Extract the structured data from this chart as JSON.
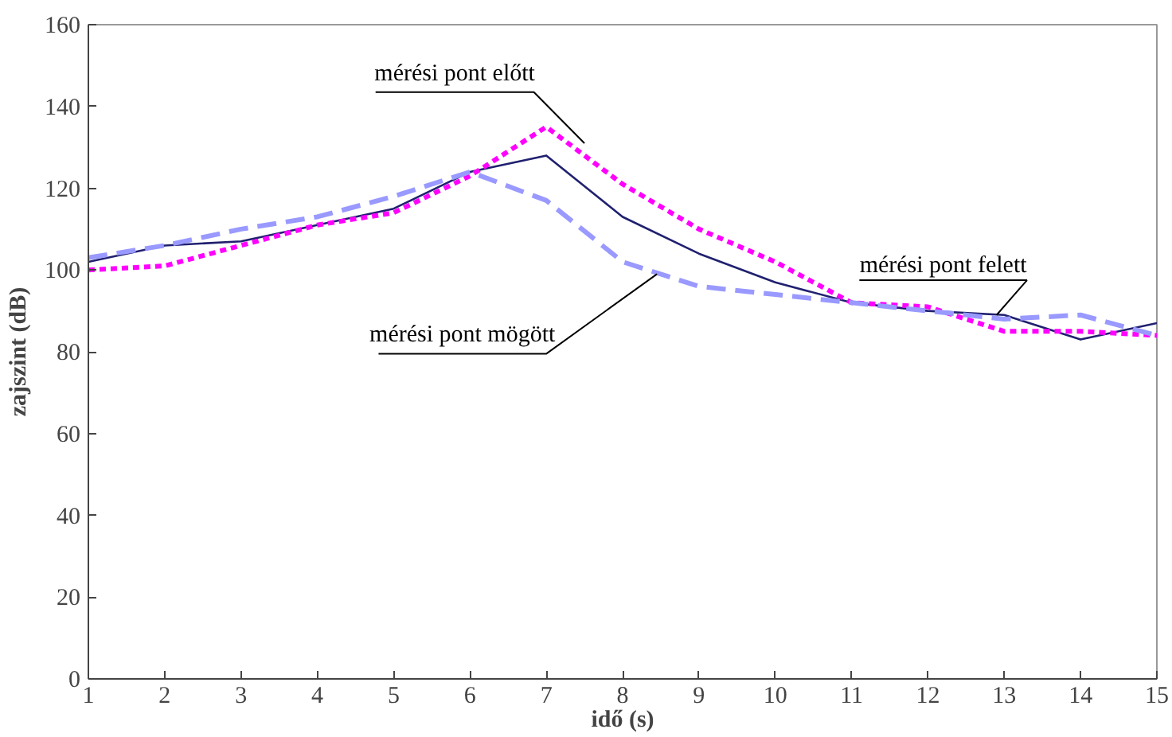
{
  "chart_data": {
    "type": "line",
    "xlabel": "idő (s)",
    "ylabel": "zajszint (dB)",
    "x": [
      1,
      2,
      3,
      4,
      5,
      6,
      7,
      8,
      9,
      10,
      11,
      12,
      13,
      14,
      15
    ],
    "xlim": [
      1,
      15
    ],
    "xticks": [
      1,
      2,
      3,
      4,
      5,
      6,
      7,
      8,
      9,
      10,
      11,
      12,
      13,
      14,
      15
    ],
    "ylim": [
      0,
      160
    ],
    "yticks": [
      0,
      20,
      40,
      60,
      80,
      100,
      120,
      140,
      160
    ],
    "grid": false,
    "series": [
      {
        "name": "mérési pont felett",
        "color": "#202070",
        "line_style": "solid",
        "values": [
          102,
          106,
          107,
          111,
          115,
          124,
          128,
          113,
          104,
          97,
          92,
          90,
          89,
          83,
          87
        ]
      },
      {
        "name": "mérési pont előtt",
        "color": "#ff00ff",
        "line_style": "dotted",
        "values": [
          100,
          101,
          106,
          111,
          114,
          123,
          135,
          121,
          110,
          102,
          92,
          91,
          85,
          85,
          84
        ]
      },
      {
        "name": "mérési pont mögött",
        "color": "#9999ff",
        "line_style": "dashed",
        "values": [
          103,
          106,
          110,
          113,
          118,
          124,
          117,
          102,
          96,
          94,
          92,
          90,
          88,
          89,
          84
        ]
      }
    ]
  }
}
